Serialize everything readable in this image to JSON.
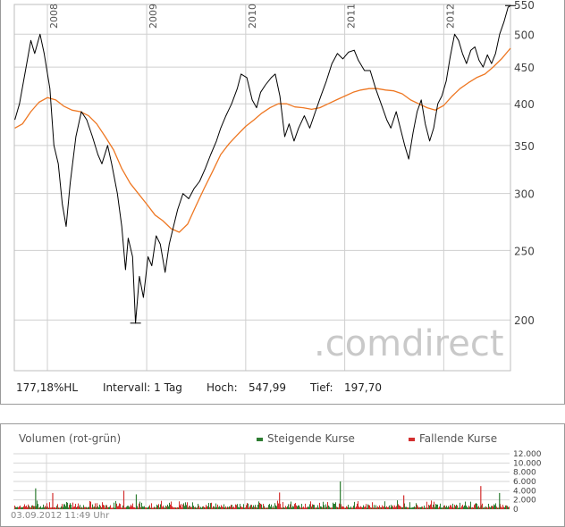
{
  "chart_data": [
    {
      "type": "line",
      "scale": "log",
      "ylim": [
        170,
        550
      ],
      "y_ticks": [
        550,
        500,
        450,
        400,
        350,
        300,
        250,
        200
      ],
      "x_ticks": [
        "2008",
        "2009",
        "2010",
        "2011",
        "2012"
      ],
      "x_range": [
        "2007-09-01",
        "2012-09-03"
      ],
      "grid": true,
      "watermark": ".comdirect",
      "series": [
        {
          "color": "#000000",
          "points": [
            [
              "2007-09-03",
              380
            ],
            [
              "2007-09-20",
              400
            ],
            [
              "2007-10-10",
              440
            ],
            [
              "2007-11-01",
              490
            ],
            [
              "2007-11-15",
              470
            ],
            [
              "2007-12-05",
              500
            ],
            [
              "2007-12-20",
              470
            ],
            [
              "2008-01-10",
              420
            ],
            [
              "2008-01-25",
              350
            ],
            [
              "2008-02-10",
              330
            ],
            [
              "2008-02-25",
              290
            ],
            [
              "2008-03-10",
              270
            ],
            [
              "2008-03-25",
              310
            ],
            [
              "2008-04-15",
              360
            ],
            [
              "2008-05-05",
              390
            ],
            [
              "2008-05-25",
              380
            ],
            [
              "2008-06-15",
              360
            ],
            [
              "2008-07-05",
              340
            ],
            [
              "2008-07-20",
              330
            ],
            [
              "2008-08-10",
              350
            ],
            [
              "2008-08-25",
              330
            ],
            [
              "2008-09-15",
              300
            ],
            [
              "2008-10-01",
              270
            ],
            [
              "2008-10-15",
              235
            ],
            [
              "2008-10-25",
              260
            ],
            [
              "2008-11-10",
              245
            ],
            [
              "2008-11-21",
              198
            ],
            [
              "2008-12-05",
              230
            ],
            [
              "2008-12-20",
              215
            ],
            [
              "2009-01-06",
              245
            ],
            [
              "2009-01-20",
              238
            ],
            [
              "2009-02-05",
              262
            ],
            [
              "2009-02-20",
              255
            ],
            [
              "2009-03-10",
              233
            ],
            [
              "2009-03-25",
              255
            ],
            [
              "2009-04-10",
              270
            ],
            [
              "2009-04-25",
              285
            ],
            [
              "2009-05-15",
              300
            ],
            [
              "2009-06-05",
              295
            ],
            [
              "2009-06-25",
              305
            ],
            [
              "2009-07-15",
              312
            ],
            [
              "2009-08-05",
              325
            ],
            [
              "2009-08-25",
              340
            ],
            [
              "2009-09-15",
              355
            ],
            [
              "2009-10-01",
              370
            ],
            [
              "2009-10-20",
              385
            ],
            [
              "2009-11-10",
              400
            ],
            [
              "2009-12-01",
              420
            ],
            [
              "2009-12-15",
              440
            ],
            [
              "2010-01-05",
              435
            ],
            [
              "2010-01-25",
              405
            ],
            [
              "2010-02-10",
              395
            ],
            [
              "2010-02-25",
              415
            ],
            [
              "2010-03-15",
              425
            ],
            [
              "2010-04-05",
              435
            ],
            [
              "2010-04-20",
              440
            ],
            [
              "2010-05-07",
              410
            ],
            [
              "2010-05-25",
              360
            ],
            [
              "2010-06-10",
              375
            ],
            [
              "2010-06-28",
              355
            ],
            [
              "2010-07-15",
              370
            ],
            [
              "2010-08-05",
              385
            ],
            [
              "2010-08-25",
              370
            ],
            [
              "2010-09-15",
              390
            ],
            [
              "2010-10-05",
              410
            ],
            [
              "2010-10-25",
              430
            ],
            [
              "2010-11-15",
              455
            ],
            [
              "2010-12-05",
              470
            ],
            [
              "2010-12-25",
              462
            ],
            [
              "2011-01-15",
              472
            ],
            [
              "2011-02-05",
              475
            ],
            [
              "2011-02-20",
              460
            ],
            [
              "2011-03-15",
              445
            ],
            [
              "2011-04-05",
              445
            ],
            [
              "2011-04-25",
              420
            ],
            [
              "2011-05-15",
              400
            ],
            [
              "2011-06-05",
              380
            ],
            [
              "2011-06-20",
              370
            ],
            [
              "2011-07-10",
              390
            ],
            [
              "2011-07-25",
              370
            ],
            [
              "2011-08-10",
              350
            ],
            [
              "2011-08-25",
              335
            ],
            [
              "2011-09-10",
              365
            ],
            [
              "2011-09-25",
              390
            ],
            [
              "2011-10-10",
              405
            ],
            [
              "2011-10-25",
              375
            ],
            [
              "2011-11-10",
              355
            ],
            [
              "2011-11-25",
              370
            ],
            [
              "2011-12-10",
              400
            ],
            [
              "2011-12-25",
              410
            ],
            [
              "2012-01-10",
              430
            ],
            [
              "2012-01-25",
              465
            ],
            [
              "2012-02-10",
              500
            ],
            [
              "2012-02-25",
              490
            ],
            [
              "2012-03-10",
              470
            ],
            [
              "2012-03-25",
              455
            ],
            [
              "2012-04-10",
              475
            ],
            [
              "2012-04-25",
              480
            ],
            [
              "2012-05-10",
              460
            ],
            [
              "2012-05-25",
              450
            ],
            [
              "2012-06-10",
              468
            ],
            [
              "2012-06-25",
              455
            ],
            [
              "2012-07-10",
              470
            ],
            [
              "2012-07-25",
              500
            ],
            [
              "2012-08-10",
              520
            ],
            [
              "2012-08-25",
              545
            ],
            [
              "2012-09-03",
              548
            ]
          ]
        },
        {
          "color": "#ee7722",
          "points": [
            [
              "2007-09-03",
              370
            ],
            [
              "2007-10-01",
              375
            ],
            [
              "2007-11-01",
              390
            ],
            [
              "2007-12-01",
              402
            ],
            [
              "2008-01-01",
              408
            ],
            [
              "2008-02-01",
              405
            ],
            [
              "2008-03-01",
              397
            ],
            [
              "2008-04-01",
              392
            ],
            [
              "2008-05-01",
              390
            ],
            [
              "2008-06-01",
              385
            ],
            [
              "2008-07-01",
              375
            ],
            [
              "2008-08-01",
              360
            ],
            [
              "2008-09-01",
              345
            ],
            [
              "2008-10-01",
              325
            ],
            [
              "2008-11-01",
              310
            ],
            [
              "2008-12-01",
              300
            ],
            [
              "2009-01-01",
              290
            ],
            [
              "2009-02-01",
              280
            ],
            [
              "2009-03-01",
              275
            ],
            [
              "2009-04-01",
              268
            ],
            [
              "2009-05-01",
              265
            ],
            [
              "2009-06-01",
              272
            ],
            [
              "2009-07-01",
              288
            ],
            [
              "2009-08-01",
              305
            ],
            [
              "2009-09-01",
              322
            ],
            [
              "2009-10-01",
              340
            ],
            [
              "2009-11-01",
              352
            ],
            [
              "2009-12-01",
              362
            ],
            [
              "2010-01-01",
              372
            ],
            [
              "2010-02-01",
              380
            ],
            [
              "2010-03-01",
              388
            ],
            [
              "2010-04-01",
              395
            ],
            [
              "2010-05-01",
              400
            ],
            [
              "2010-06-01",
              400
            ],
            [
              "2010-07-01",
              396
            ],
            [
              "2010-08-01",
              395
            ],
            [
              "2010-09-01",
              393
            ],
            [
              "2010-10-01",
              395
            ],
            [
              "2010-11-01",
              400
            ],
            [
              "2010-12-01",
              405
            ],
            [
              "2011-01-01",
              410
            ],
            [
              "2011-02-01",
              415
            ],
            [
              "2011-03-01",
              418
            ],
            [
              "2011-04-01",
              420
            ],
            [
              "2011-05-01",
              420
            ],
            [
              "2011-06-01",
              418
            ],
            [
              "2011-07-01",
              417
            ],
            [
              "2011-08-01",
              413
            ],
            [
              "2011-09-01",
              405
            ],
            [
              "2011-10-01",
              400
            ],
            [
              "2011-11-01",
              395
            ],
            [
              "2011-12-01",
              392
            ],
            [
              "2012-01-01",
              398
            ],
            [
              "2012-02-01",
              410
            ],
            [
              "2012-03-01",
              420
            ],
            [
              "2012-04-01",
              428
            ],
            [
              "2012-05-01",
              435
            ],
            [
              "2012-06-01",
              440
            ],
            [
              "2012-07-01",
              450
            ],
            [
              "2012-08-01",
              462
            ],
            [
              "2012-09-03",
              478
            ]
          ]
        }
      ]
    },
    {
      "type": "bar",
      "title": "Volumen (rot-grün)",
      "ylim": [
        0,
        12000
      ],
      "y_ticks": [
        "12.000",
        "10.000",
        "8.000",
        "6.000",
        "4.000",
        "2.000",
        "0"
      ],
      "series": [
        {
          "name": "Steigende Kurse",
          "color": "#2e7d32"
        },
        {
          "name": "Fallende Kurse",
          "color": "#d32f2f"
        }
      ],
      "spikes": [
        {
          "date": "2007-11-20",
          "value": 4500,
          "trend": "rising"
        },
        {
          "date": "2008-01-22",
          "value": 3500,
          "trend": "falling"
        },
        {
          "date": "2008-10-10",
          "value": 4000,
          "trend": "falling"
        },
        {
          "date": "2008-11-25",
          "value": 3200,
          "trend": "rising"
        },
        {
          "date": "2010-05-07",
          "value": 3600,
          "trend": "falling"
        },
        {
          "date": "2010-12-17",
          "value": 6000,
          "trend": "rising"
        },
        {
          "date": "2011-08-08",
          "value": 3000,
          "trend": "falling"
        },
        {
          "date": "2012-05-18",
          "value": 5000,
          "trend": "falling"
        },
        {
          "date": "2012-07-26",
          "value": 3500,
          "trend": "rising"
        }
      ]
    }
  ],
  "stats": {
    "perf": "177,18%HL",
    "interval": "Intervall: 1 Tag",
    "high_label": "Hoch:",
    "high_value": "547,99",
    "low_label": "Tief:",
    "low_value": "197,70"
  },
  "volume_panel": {
    "title": "Volumen (rot-grün)",
    "legend_up": "Steigende Kurse",
    "legend_down": "Fallende Kurse",
    "color_up": "#2e7d32",
    "color_down": "#d32f2f"
  },
  "timestamp": "03.09.2012 11:49 Uhr",
  "watermark_text": ".comdirect"
}
